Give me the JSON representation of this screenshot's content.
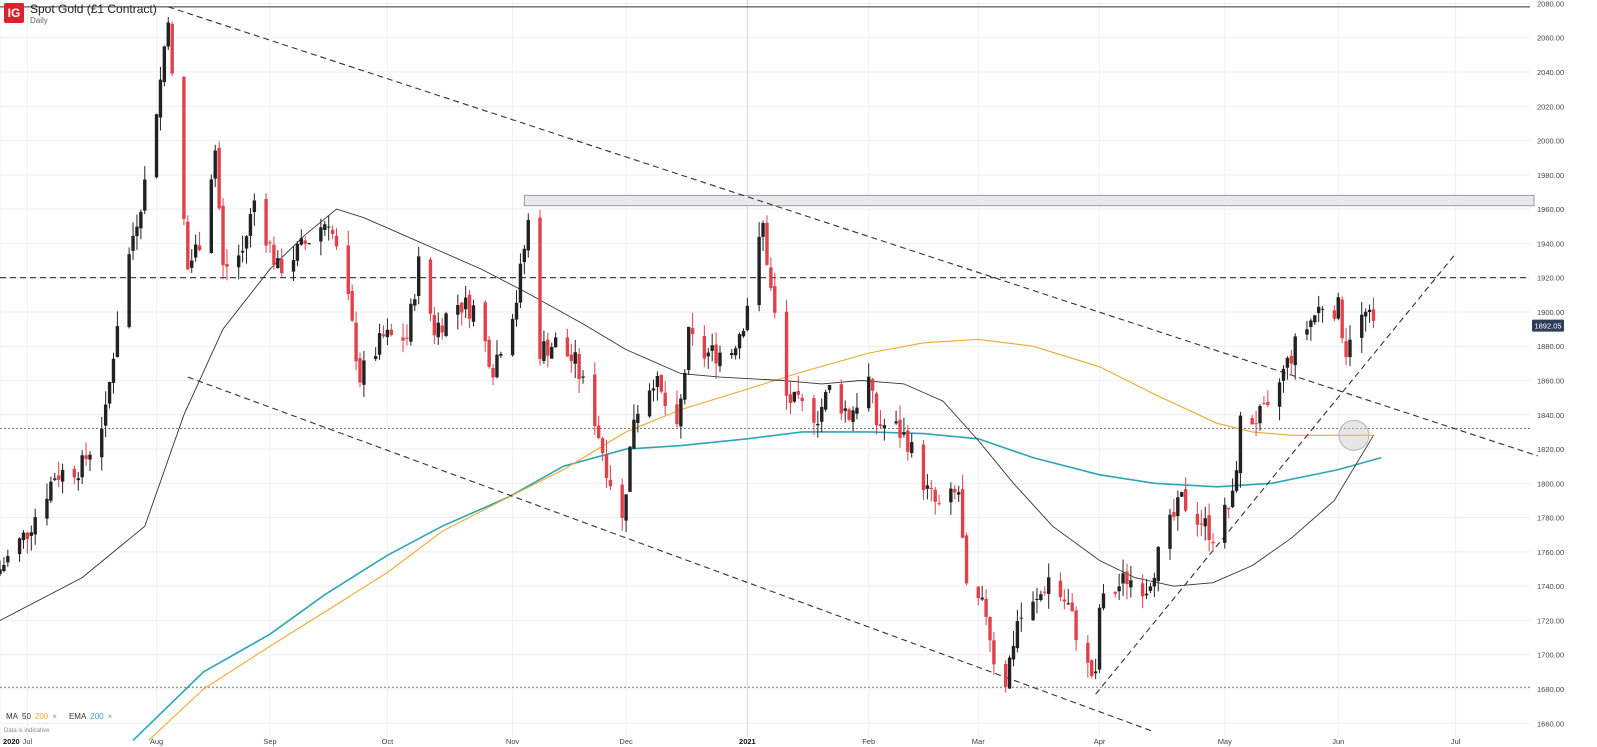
{
  "header": {
    "logo": "IG",
    "title": "Spot Gold (£1 Contract)",
    "interval": "Daily"
  },
  "legend": {
    "ma_label": "MA",
    "ma_fast": "50",
    "ma_slow": "200",
    "close": "×",
    "ema_label": "EMA",
    "ema_period": "200",
    "close2": "×",
    "note": "Data is indicative"
  },
  "colors": {
    "up": "#222222",
    "down": "#e0414b",
    "ma50": "#333333",
    "ma200": "#f0a830",
    "ema200": "#2aa6b6"
  },
  "chart_data": {
    "type": "candlestick",
    "xlabel": "",
    "ylabel": "",
    "ylim": [
      1652,
      2082
    ],
    "xlim": [
      "2020-06-24",
      "2021-07-20"
    ],
    "y_ticks": [
      "2080.00",
      "2060.00",
      "2040.00",
      "2020.00",
      "2000.00",
      "1980.00",
      "1960.00",
      "1940.00",
      "1920.00",
      "1900.00",
      "1880.00",
      "1860.00",
      "1840.00",
      "1820.00",
      "1800.00",
      "1780.00",
      "1760.00",
      "1740.00",
      "1720.00",
      "1700.00",
      "1680.00",
      "1660.00"
    ],
    "x_ticks": [
      {
        "label": "2020",
        "date": "2020-06-24"
      },
      {
        "label": "Jul",
        "date": "2020-07-01"
      },
      {
        "label": "Aug",
        "date": "2020-08-03"
      },
      {
        "label": "Sep",
        "date": "2020-09-01"
      },
      {
        "label": "Oct",
        "date": "2020-10-01"
      },
      {
        "label": "Nov",
        "date": "2020-11-02"
      },
      {
        "label": "Dec",
        "date": "2020-12-01"
      },
      {
        "label": "2021",
        "date": "2021-01-01"
      },
      {
        "label": "Feb",
        "date": "2021-02-01"
      },
      {
        "label": "Mar",
        "date": "2021-03-01"
      },
      {
        "label": "Apr",
        "date": "2021-04-01"
      },
      {
        "label": "May",
        "date": "2021-05-03"
      },
      {
        "label": "Jun",
        "date": "2021-06-01"
      },
      {
        "label": "Jul",
        "date": "2021-07-01"
      }
    ],
    "last_price": "1892.05",
    "last_value": 1892.05,
    "close_path": [
      [
        "2020-06-24",
        1750
      ],
      [
        "2020-07-01",
        1772
      ],
      [
        "2020-07-08",
        1805
      ],
      [
        "2020-07-15",
        1810
      ],
      [
        "2020-07-21",
        1840
      ],
      [
        "2020-07-24",
        1895
      ],
      [
        "2020-07-28",
        1945
      ],
      [
        "2020-07-31",
        1975
      ],
      [
        "2020-08-04",
        2035
      ],
      [
        "2020-08-06",
        2075
      ],
      [
        "2020-08-07",
        2035
      ],
      [
        "2020-08-11",
        1925
      ],
      [
        "2020-08-14",
        1942
      ],
      [
        "2020-08-18",
        1995
      ],
      [
        "2020-08-20",
        1925
      ],
      [
        "2020-08-25",
        1935
      ],
      [
        "2020-08-28",
        1965
      ],
      [
        "2020-09-03",
        1925
      ],
      [
        "2020-09-08",
        1935
      ],
      [
        "2020-09-16",
        1955
      ],
      [
        "2020-09-21",
        1905
      ],
      [
        "2020-09-24",
        1862
      ],
      [
        "2020-09-30",
        1885
      ],
      [
        "2020-10-06",
        1885
      ],
      [
        "2020-10-09",
        1928
      ],
      [
        "2020-10-13",
        1890
      ],
      [
        "2020-10-19",
        1905
      ],
      [
        "2020-10-23",
        1902
      ],
      [
        "2020-10-28",
        1868
      ],
      [
        "2020-11-03",
        1908
      ],
      [
        "2020-11-06",
        1952
      ],
      [
        "2020-11-09",
        1878
      ],
      [
        "2020-11-13",
        1882
      ],
      [
        "2020-11-18",
        1870
      ],
      [
        "2020-11-23",
        1838
      ],
      [
        "2020-11-26",
        1810
      ],
      [
        "2020-11-30",
        1778
      ],
      [
        "2020-12-03",
        1840
      ],
      [
        "2020-12-08",
        1862
      ],
      [
        "2020-12-14",
        1828
      ],
      [
        "2020-12-17",
        1885
      ],
      [
        "2020-12-21",
        1875
      ],
      [
        "2020-12-28",
        1878
      ],
      [
        "2020-12-31",
        1895
      ],
      [
        "2021-01-05",
        1950
      ],
      [
        "2021-01-07",
        1912
      ],
      [
        "2021-01-11",
        1850
      ],
      [
        "2021-01-14",
        1845
      ],
      [
        "2021-01-19",
        1840
      ],
      [
        "2021-01-22",
        1855
      ],
      [
        "2021-01-27",
        1840
      ],
      [
        "2021-02-01",
        1860
      ],
      [
        "2021-02-03",
        1835
      ],
      [
        "2021-02-08",
        1832
      ],
      [
        "2021-02-11",
        1825
      ],
      [
        "2021-02-16",
        1795
      ],
      [
        "2021-02-19",
        1785
      ],
      [
        "2021-02-24",
        1795
      ],
      [
        "2021-02-26",
        1735
      ],
      [
        "2021-03-03",
        1725
      ],
      [
        "2021-03-05",
        1698
      ],
      [
        "2021-03-08",
        1685
      ],
      [
        "2021-03-11",
        1720
      ],
      [
        "2021-03-16",
        1730
      ],
      [
        "2021-03-19",
        1745
      ],
      [
        "2021-03-24",
        1728
      ],
      [
        "2021-03-29",
        1692
      ],
      [
        "2021-03-31",
        1685
      ],
      [
        "2021-04-01",
        1728
      ],
      [
        "2021-04-08",
        1745
      ],
      [
        "2021-04-13",
        1740
      ],
      [
        "2021-04-19",
        1775
      ],
      [
        "2021-04-22",
        1790
      ],
      [
        "2021-04-27",
        1778
      ],
      [
        "2021-04-30",
        1770
      ],
      [
        "2021-05-05",
        1790
      ],
      [
        "2021-05-07",
        1835
      ],
      [
        "2021-05-11",
        1838
      ],
      [
        "2021-05-14",
        1840
      ],
      [
        "2021-05-18",
        1865
      ],
      [
        "2021-05-21",
        1880
      ],
      [
        "2021-05-25",
        1895
      ],
      [
        "2021-05-28",
        1905
      ],
      [
        "2021-06-01",
        1902
      ],
      [
        "2021-06-03",
        1878
      ],
      [
        "2021-06-04",
        1888
      ],
      [
        "2021-06-08",
        1898
      ],
      [
        "2021-06-10",
        1892
      ]
    ],
    "ma50": [
      [
        "2020-06-24",
        1720
      ],
      [
        "2020-07-15",
        1745
      ],
      [
        "2020-07-31",
        1775
      ],
      [
        "2020-08-10",
        1840
      ],
      [
        "2020-08-20",
        1890
      ],
      [
        "2020-09-01",
        1925
      ],
      [
        "2020-09-10",
        1945
      ],
      [
        "2020-09-18",
        1960
      ],
      [
        "2020-09-25",
        1955
      ],
      [
        "2020-10-05",
        1945
      ],
      [
        "2020-10-15",
        1935
      ],
      [
        "2020-10-25",
        1925
      ],
      [
        "2020-11-05",
        1912
      ],
      [
        "2020-11-20",
        1893
      ],
      [
        "2020-12-01",
        1878
      ],
      [
        "2020-12-15",
        1864
      ],
      [
        "2020-12-25",
        1862
      ],
      [
        "2021-01-10",
        1860
      ],
      [
        "2021-01-20",
        1858
      ],
      [
        "2021-01-30",
        1860
      ],
      [
        "2021-02-10",
        1858
      ],
      [
        "2021-02-20",
        1848
      ],
      [
        "2021-03-01",
        1825
      ],
      [
        "2021-03-10",
        1800
      ],
      [
        "2021-03-20",
        1775
      ],
      [
        "2021-04-01",
        1755
      ],
      [
        "2021-04-10",
        1745
      ],
      [
        "2021-04-20",
        1740
      ],
      [
        "2021-04-30",
        1742
      ],
      [
        "2021-05-10",
        1752
      ],
      [
        "2021-05-20",
        1768
      ],
      [
        "2021-05-31",
        1790
      ],
      [
        "2021-06-10",
        1828
      ]
    ],
    "ma200": [
      [
        "2020-08-01",
        1650
      ],
      [
        "2020-08-15",
        1680
      ],
      [
        "2020-09-01",
        1705
      ],
      [
        "2020-09-15",
        1725
      ],
      [
        "2020-10-01",
        1748
      ],
      [
        "2020-10-15",
        1772
      ],
      [
        "2020-11-01",
        1792
      ],
      [
        "2020-11-15",
        1808
      ],
      [
        "2020-12-01",
        1830
      ],
      [
        "2020-12-15",
        1843
      ],
      [
        "2021-01-01",
        1855
      ],
      [
        "2021-01-15",
        1865
      ],
      [
        "2021-02-01",
        1876
      ],
      [
        "2021-02-15",
        1882
      ],
      [
        "2021-03-01",
        1884
      ],
      [
        "2021-03-15",
        1880
      ],
      [
        "2021-04-01",
        1868
      ],
      [
        "2021-04-15",
        1852
      ],
      [
        "2021-05-01",
        1835
      ],
      [
        "2021-05-10",
        1830
      ],
      [
        "2021-05-20",
        1828
      ],
      [
        "2021-06-01",
        1828
      ],
      [
        "2021-06-10",
        1828
      ]
    ],
    "ema200": [
      [
        "2020-07-28",
        1650
      ],
      [
        "2020-08-15",
        1690
      ],
      [
        "2020-09-01",
        1712
      ],
      [
        "2020-09-15",
        1735
      ],
      [
        "2020-10-01",
        1758
      ],
      [
        "2020-10-15",
        1775
      ],
      [
        "2020-11-01",
        1792
      ],
      [
        "2020-11-15",
        1810
      ],
      [
        "2020-12-01",
        1820
      ],
      [
        "2020-12-15",
        1822
      ],
      [
        "2021-01-01",
        1826
      ],
      [
        "2021-01-15",
        1830
      ],
      [
        "2021-02-01",
        1830
      ],
      [
        "2021-02-15",
        1829
      ],
      [
        "2021-03-01",
        1826
      ],
      [
        "2021-03-15",
        1815
      ],
      [
        "2021-04-01",
        1805
      ],
      [
        "2021-04-15",
        1800
      ],
      [
        "2021-05-01",
        1798
      ],
      [
        "2021-05-15",
        1800
      ],
      [
        "2021-06-01",
        1808
      ],
      [
        "2021-06-12",
        1815
      ]
    ],
    "annotations": {
      "resistance_zone": {
        "from": "2020-11-05",
        "to": "2021-07-21",
        "y_low": 1962,
        "y_high": 1968
      },
      "top_hline": 2078,
      "dashed_hline": 1920,
      "dotted_hlines": [
        1832,
        1681
      ],
      "trendlines": [
        {
          "p1": [
            "2020-08-06",
            2078
          ],
          "p2": [
            "2021-07-22",
            1816
          ]
        },
        {
          "p1": [
            "2020-08-11",
            1862
          ],
          "p2": [
            "2021-04-15",
            1655
          ]
        },
        {
          "p1": [
            "2021-03-31",
            1677
          ],
          "p2": [
            "2021-07-01",
            1934
          ]
        }
      ],
      "circle": {
        "date": "2021-06-05",
        "y": 1828
      }
    }
  }
}
